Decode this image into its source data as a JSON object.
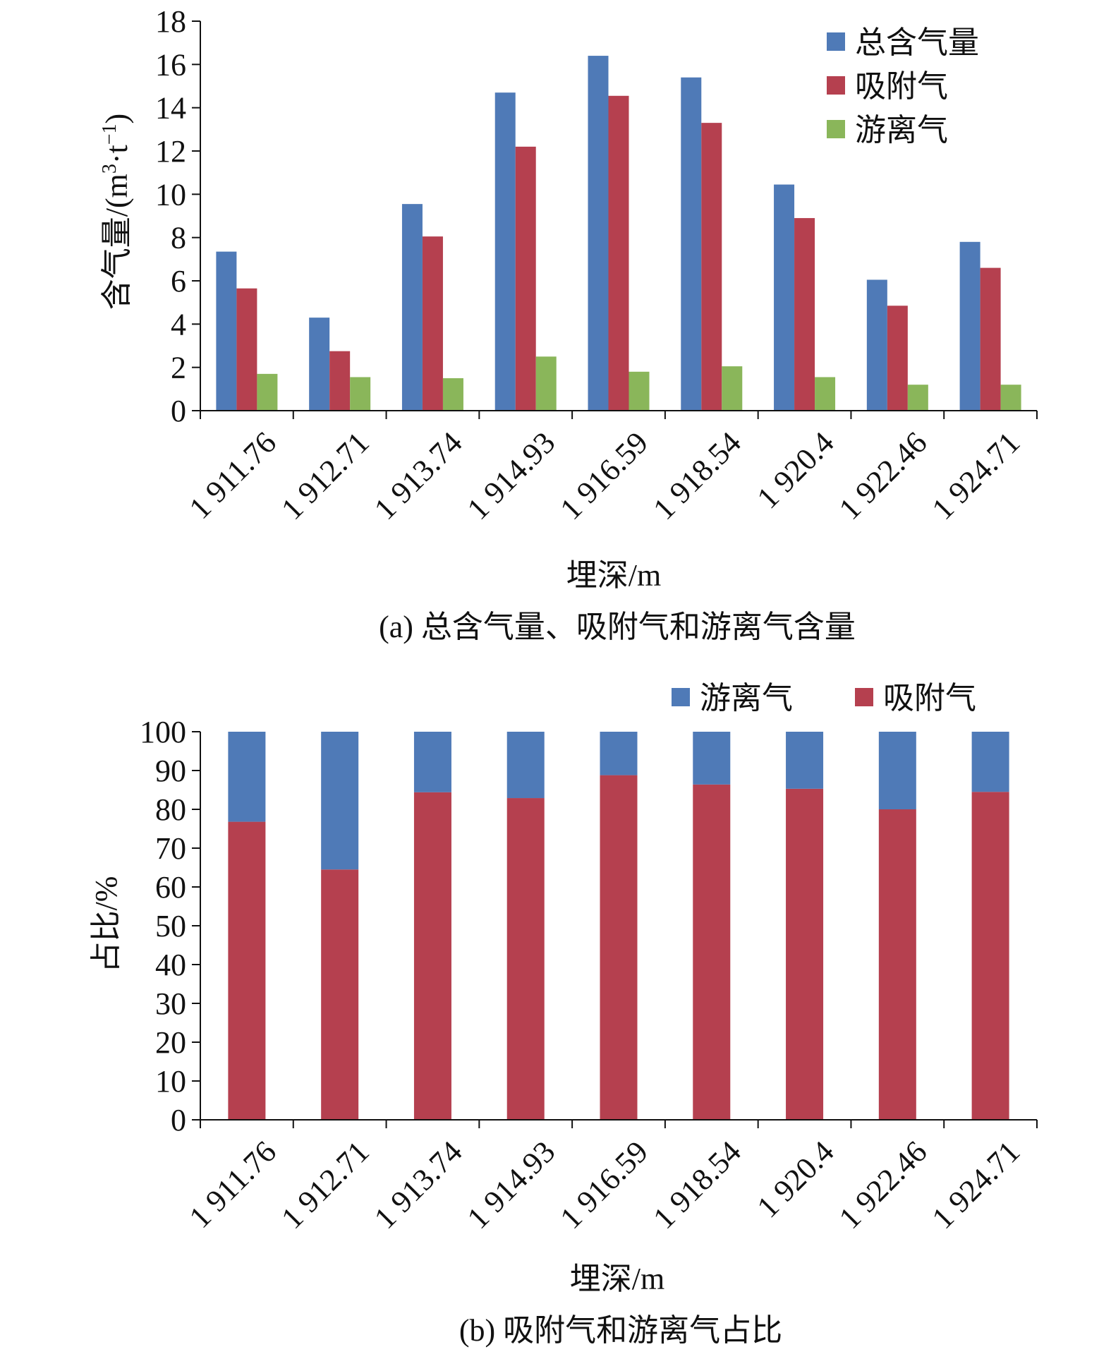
{
  "chart_data": [
    {
      "type": "bar",
      "caption": "(a) 总含气量、吸附气和游离气含量",
      "xlabel": "埋深/m",
      "ylabel": "含气量/(m³·t⁻¹)",
      "ylabel_main": "含气量/(m",
      "ylabel_sup1": "3",
      "ylabel_mid": "·t",
      "ylabel_sup2": "−1",
      "ylabel_end": ")",
      "ylim": [
        0,
        18
      ],
      "yticks": [
        "0",
        "2",
        "4",
        "6",
        "8",
        "10",
        "12",
        "14",
        "16",
        "18"
      ],
      "categories": [
        "1 911.76",
        "1 912.71",
        "1 913.74",
        "1 914.93",
        "1 916.59",
        "1 918.54",
        "1 920.4",
        "1 922.46",
        "1 924.71"
      ],
      "legend_position": "top-right",
      "grid": false,
      "series": [
        {
          "name": "总含气量",
          "color": "#4f7ab7",
          "values": [
            7.35,
            4.3,
            9.55,
            14.7,
            16.4,
            15.4,
            10.45,
            6.05,
            7.8
          ]
        },
        {
          "name": "吸附气",
          "color": "#b5404f",
          "values": [
            5.65,
            2.75,
            8.05,
            12.2,
            14.55,
            13.3,
            8.9,
            4.85,
            6.6
          ]
        },
        {
          "name": "游离气",
          "color": "#8ab65a",
          "values": [
            1.7,
            1.55,
            1.5,
            2.5,
            1.8,
            2.05,
            1.55,
            1.2,
            1.2
          ]
        }
      ]
    },
    {
      "type": "bar",
      "stacked": true,
      "caption": "(b) 吸附气和游离气占比",
      "xlabel": "埋深/m",
      "ylabel": "占比/%",
      "ylim": [
        0,
        100
      ],
      "yticks": [
        "0",
        "10",
        "20",
        "30",
        "40",
        "50",
        "60",
        "70",
        "80",
        "90",
        "100"
      ],
      "categories": [
        "1 911.76",
        "1 912.71",
        "1 913.74",
        "1 914.93",
        "1 916.59",
        "1 918.54",
        "1 920.4",
        "1 922.46",
        "1 924.71"
      ],
      "legend_position": "top-right",
      "grid": false,
      "series": [
        {
          "name": "吸附气",
          "color": "#b5404f",
          "values": [
            76.8,
            64.5,
            84.4,
            82.9,
            88.8,
            86.4,
            85.3,
            80.0,
            84.5
          ]
        },
        {
          "name": "游离气",
          "color": "#4f7ab7",
          "values": [
            23.2,
            35.5,
            15.6,
            17.1,
            11.2,
            13.6,
            14.7,
            20.0,
            15.5
          ]
        }
      ],
      "legend_order": [
        "游离气",
        "吸附气"
      ]
    }
  ]
}
